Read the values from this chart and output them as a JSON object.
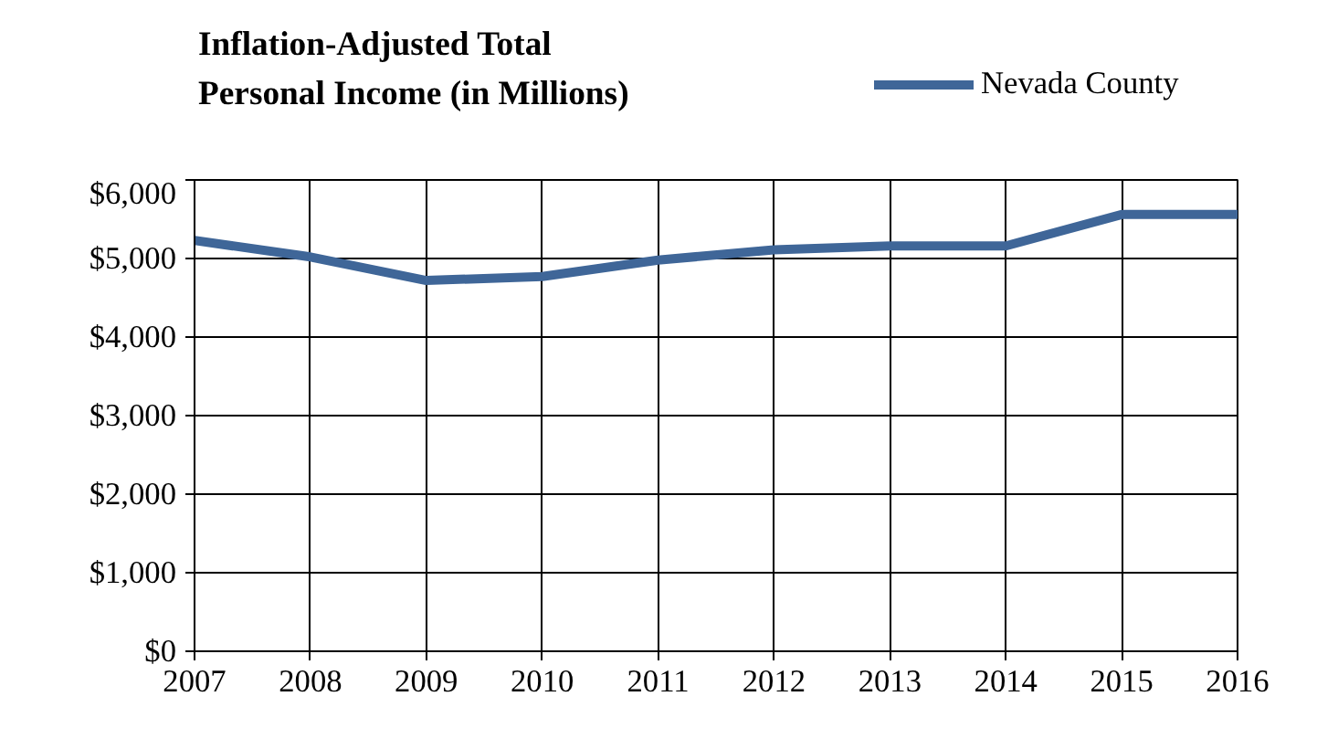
{
  "chart_data": {
    "type": "line",
    "title": "Inflation-Adjusted Total Personal Income (in Millions)",
    "x": [
      2007,
      2008,
      2009,
      2010,
      2011,
      2012,
      2013,
      2014,
      2015,
      2016
    ],
    "series": [
      {
        "name": "Nevada County",
        "color": "#3f6698",
        "values": [
          5230,
          5020,
          4720,
          4770,
          4980,
          5110,
          5160,
          5160,
          5560,
          5560
        ]
      }
    ],
    "xlim": [
      2007,
      2016
    ],
    "xticks": [
      2007,
      2008,
      2009,
      2010,
      2011,
      2012,
      2013,
      2014,
      2015,
      2016
    ],
    "ylim": [
      0,
      6000
    ],
    "yticks": [
      {
        "value": 0,
        "label": "$0"
      },
      {
        "value": 1000,
        "label": "$1,000"
      },
      {
        "value": 2000,
        "label": "$2,000"
      },
      {
        "value": 3000,
        "label": "$3,000"
      },
      {
        "value": 4000,
        "label": "$4,000"
      },
      {
        "value": 5000,
        "label": "$5,000"
      },
      {
        "value": 6000,
        "label": "$6,000"
      }
    ],
    "grid": true,
    "legend": "top right",
    "marker": "none",
    "line_style": "solid"
  }
}
